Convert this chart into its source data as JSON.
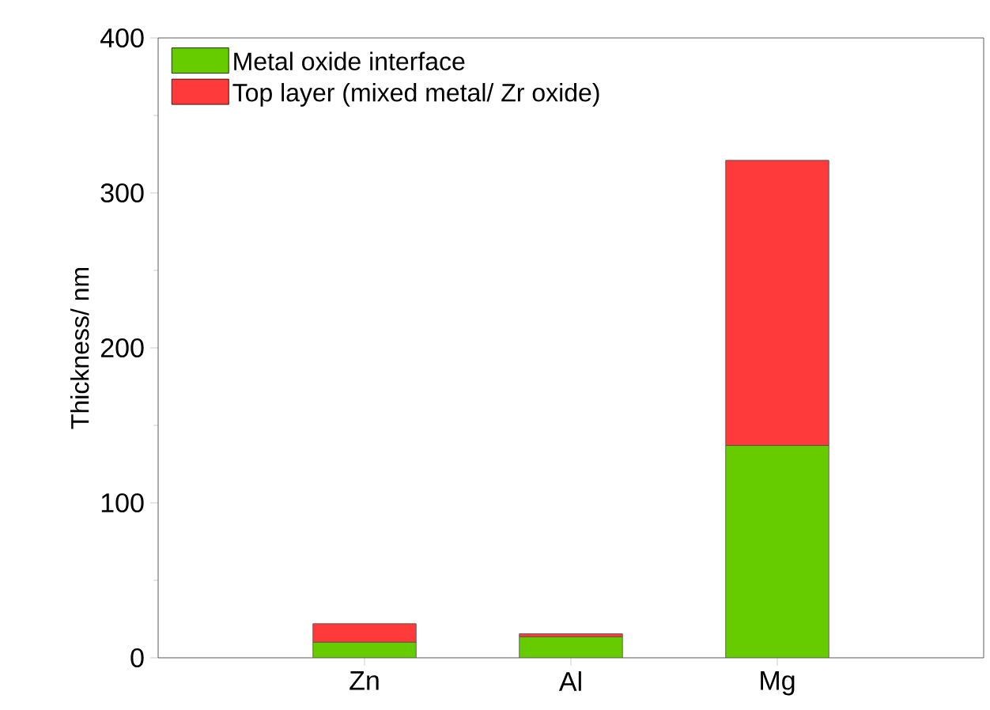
{
  "chart_data": {
    "type": "bar",
    "stacked": true,
    "ylabel": "Thickness/ nm",
    "categories": [
      "Zn",
      "Al",
      "Mg"
    ],
    "series": [
      {
        "name": "Metal oxide interface",
        "color": "#66cc00",
        "values": [
          10,
          13.5,
          137
        ]
      },
      {
        "name": "Top layer (mixed metal/ Zr oxide)",
        "color": "#ff3a3a",
        "values": [
          12,
          2,
          184
        ]
      }
    ],
    "ylim": [
      0,
      400
    ],
    "yticks": [
      0,
      100,
      200,
      300,
      400
    ],
    "legend": "top left",
    "grid": false
  }
}
